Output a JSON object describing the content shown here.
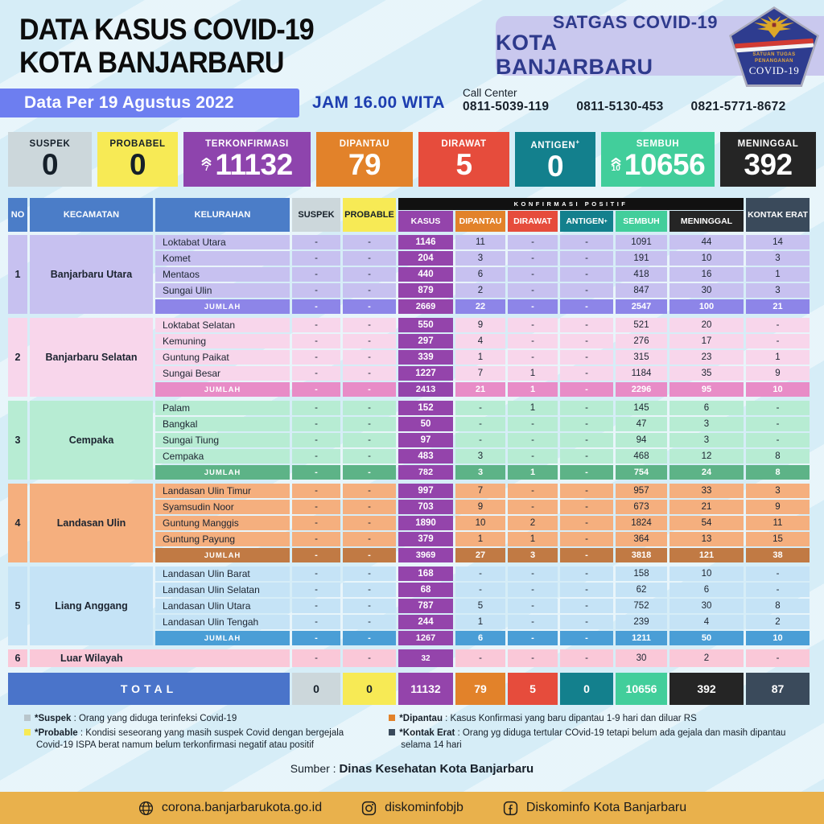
{
  "header": {
    "title_line1": "DATA KASUS COVID-19",
    "title_line2": "KOTA BANJARBARU",
    "satgas_line1": "SATGAS COVID-19",
    "satgas_line2": "KOTA BANJARBARU",
    "logo": {
      "org_line1": "SATUAN TUGAS",
      "org_line2": "PENANGANAN",
      "covid": "COVID-19"
    }
  },
  "date_bar": {
    "date_label": "Data Per 19 Agustus 2022",
    "time_label": "JAM 16.00 WITA",
    "call_center_label": "Call Center",
    "phones": [
      "0811-5039-119",
      "0811-5130-453",
      "0821-5771-8672"
    ]
  },
  "summary_cards": [
    {
      "label": "SUSPEK",
      "value": "0",
      "bg": "#ccd7db",
      "fg": "#16202a"
    },
    {
      "label": "PROBABEL",
      "value": "0",
      "bg": "#f7ea55",
      "fg": "#16202a"
    },
    {
      "label": "TERKONFIRMASI",
      "value": "11132",
      "delta": "7",
      "bg": "#8e44ad",
      "fg": "#ffffff"
    },
    {
      "label": "DIPANTAU",
      "value": "79",
      "bg": "#e2822a",
      "fg": "#ffffff"
    },
    {
      "label": "DIRAWAT",
      "value": "5",
      "bg": "#e64c3c",
      "fg": "#ffffff"
    },
    {
      "label": "ANTIGEN",
      "sup": "+",
      "value": "0",
      "bg": "#13808d",
      "fg": "#ffffff"
    },
    {
      "label": "SEMBUH",
      "value": "10656",
      "delta": "10",
      "bg": "#42ce9b",
      "fg": "#ffffff"
    },
    {
      "label": "MENINGGAL",
      "value": "392",
      "bg": "#252525",
      "fg": "#ffffff"
    }
  ],
  "table": {
    "headers": {
      "no": "NO",
      "kecamatan": "KECAMATAN",
      "kelurahan": "KELURAHAN",
      "suspek": "SUSPEK",
      "probable": "PROBABLE",
      "konfirmasi_positif": "KONFIRMASI POSITIF",
      "kasus": "KASUS",
      "dipantau": "DIPANTAU",
      "dirawat": "DIRAWAT",
      "antigen": "ANTIGEN",
      "antigen_sup": "+",
      "sembuh": "SEMBUH",
      "meninggal": "MENINGGAL",
      "kontak_erat": "KONTAK ERAT"
    },
    "value_colors": [
      "#ccd7db",
      "#f7ea55",
      "#9444ab",
      "#e2822a",
      "#e64c3c",
      "#13808d",
      "#42ce9b",
      "#252525",
      "#3a4a5b"
    ],
    "kasus_color": "#9444ab",
    "jumlah_label": "JUMLAH",
    "groups": [
      {
        "no": "1",
        "kecamatan": "Banjarbaru Utara",
        "light": "#c7c1f0",
        "dark": "#8d85e8",
        "rows": [
          {
            "kelurahan": "Loktabat Utara",
            "values": [
              "-",
              "-",
              "1146",
              "11",
              "-",
              "-",
              "1091",
              "44",
              "14"
            ]
          },
          {
            "kelurahan": "Komet",
            "values": [
              "-",
              "-",
              "204",
              "3",
              "-",
              "-",
              "191",
              "10",
              "3"
            ]
          },
          {
            "kelurahan": "Mentaos",
            "values": [
              "-",
              "-",
              "440",
              "6",
              "-",
              "-",
              "418",
              "16",
              "1"
            ]
          },
          {
            "kelurahan": "Sungai Ulin",
            "values": [
              "-",
              "-",
              "879",
              "2",
              "-",
              "-",
              "847",
              "30",
              "3"
            ]
          }
        ],
        "jumlah": [
          "-",
          "-",
          "2669",
          "22",
          "-",
          "-",
          "2547",
          "100",
          "21"
        ]
      },
      {
        "no": "2",
        "kecamatan": "Banjarbaru Selatan",
        "light": "#f8d6eb",
        "dark": "#e88cc7",
        "rows": [
          {
            "kelurahan": "Loktabat Selatan",
            "values": [
              "-",
              "-",
              "550",
              "9",
              "-",
              "-",
              "521",
              "20",
              "-"
            ]
          },
          {
            "kelurahan": "Kemuning",
            "values": [
              "-",
              "-",
              "297",
              "4",
              "-",
              "-",
              "276",
              "17",
              "-"
            ]
          },
          {
            "kelurahan": "Guntung Paikat",
            "values": [
              "-",
              "-",
              "339",
              "1",
              "-",
              "-",
              "315",
              "23",
              "1"
            ]
          },
          {
            "kelurahan": "Sungai Besar",
            "values": [
              "-",
              "-",
              "1227",
              "7",
              "1",
              "-",
              "1184",
              "35",
              "9"
            ]
          }
        ],
        "jumlah": [
          "-",
          "-",
          "2413",
          "21",
          "1",
          "-",
          "2296",
          "95",
          "10"
        ]
      },
      {
        "no": "3",
        "kecamatan": "Cempaka",
        "light": "#b7ecd3",
        "dark": "#5db387",
        "rows": [
          {
            "kelurahan": "Palam",
            "values": [
              "-",
              "-",
              "152",
              "-",
              "1",
              "-",
              "145",
              "6",
              "-"
            ]
          },
          {
            "kelurahan": "Bangkal",
            "values": [
              "-",
              "-",
              "50",
              "-",
              "-",
              "-",
              "47",
              "3",
              "-"
            ]
          },
          {
            "kelurahan": "Sungai Tiung",
            "values": [
              "-",
              "-",
              "97",
              "-",
              "-",
              "-",
              "94",
              "3",
              "-"
            ]
          },
          {
            "kelurahan": "Cempaka",
            "values": [
              "-",
              "-",
              "483",
              "3",
              "-",
              "-",
              "468",
              "12",
              "8"
            ]
          }
        ],
        "jumlah": [
          "-",
          "-",
          "782",
          "3",
          "1",
          "-",
          "754",
          "24",
          "8"
        ]
      },
      {
        "no": "4",
        "kecamatan": "Landasan Ulin",
        "light": "#f5af7e",
        "dark": "#c17a44",
        "rows": [
          {
            "kelurahan": "Landasan Ulin Timur",
            "values": [
              "-",
              "-",
              "997",
              "7",
              "-",
              "-",
              "957",
              "33",
              "3"
            ]
          },
          {
            "kelurahan": "Syamsudin Noor",
            "values": [
              "-",
              "-",
              "703",
              "9",
              "-",
              "-",
              "673",
              "21",
              "9"
            ]
          },
          {
            "kelurahan": "Guntung Manggis",
            "values": [
              "-",
              "-",
              "1890",
              "10",
              "2",
              "-",
              "1824",
              "54",
              "11"
            ]
          },
          {
            "kelurahan": "Guntung Payung",
            "values": [
              "-",
              "-",
              "379",
              "1",
              "1",
              "-",
              "364",
              "13",
              "15"
            ]
          }
        ],
        "jumlah": [
          "-",
          "-",
          "3969",
          "27",
          "3",
          "-",
          "3818",
          "121",
          "38"
        ]
      },
      {
        "no": "5",
        "kecamatan": "Liang Anggang",
        "light": "#c5e3f6",
        "dark": "#4a9ed6",
        "rows": [
          {
            "kelurahan": "Landasan Ulin Barat",
            "values": [
              "-",
              "-",
              "168",
              "-",
              "-",
              "-",
              "158",
              "10",
              "-"
            ]
          },
          {
            "kelurahan": "Landasan Ulin Selatan",
            "values": [
              "-",
              "-",
              "68",
              "-",
              "-",
              "-",
              "62",
              "6",
              "-"
            ]
          },
          {
            "kelurahan": "Landasan Ulin Utara",
            "values": [
              "-",
              "-",
              "787",
              "5",
              "-",
              "-",
              "752",
              "30",
              "8"
            ]
          },
          {
            "kelurahan": "Landasan Ulin Tengah",
            "values": [
              "-",
              "-",
              "244",
              "1",
              "-",
              "-",
              "239",
              "4",
              "2"
            ]
          }
        ],
        "jumlah": [
          "-",
          "-",
          "1267",
          "6",
          "-",
          "-",
          "1211",
          "50",
          "10"
        ]
      }
    ],
    "luar_wilayah": {
      "no": "6",
      "label": "Luar Wilayah",
      "light": "#fac8d8",
      "values": [
        "-",
        "-",
        "32",
        "-",
        "-",
        "-",
        "30",
        "2",
        "-"
      ]
    },
    "total": {
      "label": "TOTAL",
      "bg": "#4a74ca",
      "values": [
        "0",
        "0",
        "11132",
        "79",
        "5",
        "0",
        "10656",
        "392",
        "87"
      ]
    }
  },
  "legend": [
    {
      "term": "*Suspek",
      "desc": "Orang yang diduga terinfeksi Covid-19",
      "color": "#b9c6cc"
    },
    {
      "term": "*Probable",
      "desc": "Kondisi seseorang yang masih suspek Covid dengan bergejala Covid-19 ISPA berat namum belum terkonfirmasi negatif atau positif",
      "color": "#f7ea55"
    },
    {
      "term": "*Dipantau",
      "desc": "Kasus Konfirmasi yang baru dipantau 1-9 hari dan diluar RS",
      "color": "#e2822a"
    },
    {
      "term": "*Kontak Erat",
      "desc": "Orang yg diduga tertular COvid-19 tetapi belum ada gejala dan masih dipantau selama 14 hari",
      "color": "#3a4a5b"
    }
  ],
  "sumber": {
    "label": "Sumber :",
    "value": "Dinas Kesehatan Kota Banjarbaru"
  },
  "footer": {
    "bg": "#e9b14c",
    "links": [
      {
        "icon": "globe-icon",
        "label": "corona.banjarbarukota.go.id"
      },
      {
        "icon": "instagram-icon",
        "label": "diskominfobjb"
      },
      {
        "icon": "facebook-icon",
        "label": "Diskominfo Kota Banjarbaru"
      }
    ]
  }
}
